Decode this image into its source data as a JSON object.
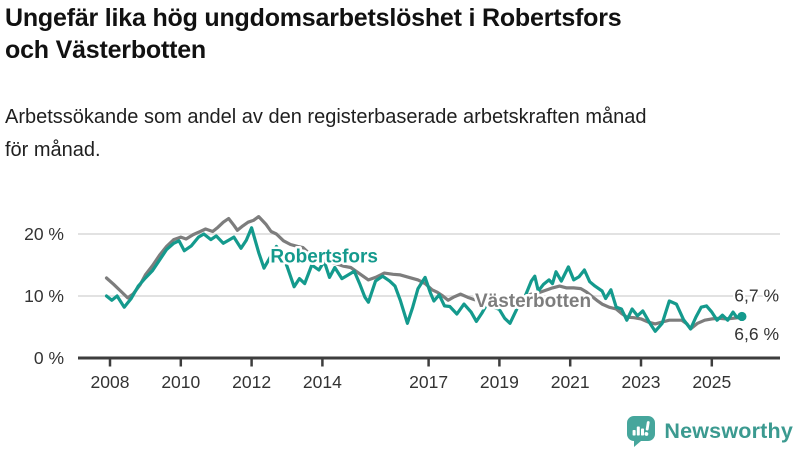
{
  "header": {
    "title_line1": "Ungefär lika hög ungdomsarbetslöshet i Robertsfors",
    "title_line2": "och Västerbotten",
    "subtitle_line1": "Arbetssökande som andel av den registerbaserade arbetskraften månad",
    "subtitle_line2": "för månad."
  },
  "branding": {
    "name": "Newsworthy",
    "icon": "newsworthy-bubble-barchart-icon",
    "color": "#46a69c"
  },
  "colors": {
    "robertsfors": "#149a8d",
    "vasterbotten": "#7d7d7d",
    "axis": "#3d3d3d",
    "grid": "#d9d9d9",
    "text": "#333333"
  },
  "chart_data": {
    "type": "line",
    "title": "Ungefär lika hög ungdomsarbetslöshet i Robertsfors och Västerbotten",
    "subtitle": "Arbetssökande som andel av den registerbaserade arbetskraften månad för månad.",
    "unit": "%",
    "grid": true,
    "legend_position": "inline-labels",
    "x_axis": {
      "range": [
        2007.85,
        2026.9
      ],
      "ticks": [
        2008,
        2010,
        2012,
        2014,
        2017,
        2019,
        2021,
        2023,
        2025
      ]
    },
    "y_axis": {
      "range": [
        0,
        25
      ],
      "ticks": [
        {
          "value": 0,
          "label": "0 %"
        },
        {
          "value": 10,
          "label": "10 %"
        },
        {
          "value": 20,
          "label": "20 %"
        }
      ],
      "gridlines": [
        10,
        20
      ]
    },
    "series": [
      {
        "name": "Västerbotten",
        "color": "#7d7d7d",
        "end_label": "6,6 %",
        "end_value": 6.6,
        "label_pos": {
          "year": 2019.95,
          "value": 9.2
        },
        "points": [
          [
            2007.9,
            12.9
          ],
          [
            2008.1,
            11.9
          ],
          [
            2008.3,
            10.8
          ],
          [
            2008.5,
            9.7
          ],
          [
            2008.65,
            10.3
          ],
          [
            2008.85,
            11.8
          ],
          [
            2009.0,
            13.4
          ],
          [
            2009.2,
            14.9
          ],
          [
            2009.4,
            16.6
          ],
          [
            2009.6,
            18.0
          ],
          [
            2009.8,
            19.1
          ],
          [
            2010.0,
            19.5
          ],
          [
            2010.15,
            19.2
          ],
          [
            2010.35,
            19.9
          ],
          [
            2010.55,
            20.4
          ],
          [
            2010.7,
            20.8
          ],
          [
            2010.9,
            20.4
          ],
          [
            2011.05,
            21.1
          ],
          [
            2011.2,
            21.9
          ],
          [
            2011.35,
            22.5
          ],
          [
            2011.5,
            21.4
          ],
          [
            2011.6,
            20.6
          ],
          [
            2011.75,
            21.3
          ],
          [
            2011.9,
            21.9
          ],
          [
            2012.05,
            22.2
          ],
          [
            2012.2,
            22.8
          ],
          [
            2012.4,
            21.6
          ],
          [
            2012.55,
            20.4
          ],
          [
            2012.7,
            20.0
          ],
          [
            2012.9,
            18.9
          ],
          [
            2013.1,
            18.3
          ],
          [
            2013.3,
            18.0
          ],
          [
            2013.45,
            17.8
          ],
          [
            2013.6,
            17.0
          ],
          [
            2013.8,
            16.2
          ],
          [
            2014.0,
            15.8
          ],
          [
            2014.2,
            15.5
          ],
          [
            2014.4,
            15.2
          ],
          [
            2014.6,
            14.8
          ],
          [
            2014.8,
            14.6
          ],
          [
            2015.0,
            13.8
          ],
          [
            2015.15,
            13.2
          ],
          [
            2015.3,
            12.6
          ],
          [
            2015.5,
            13.0
          ],
          [
            2015.75,
            13.7
          ],
          [
            2016.0,
            13.5
          ],
          [
            2016.2,
            13.4
          ],
          [
            2016.45,
            13.0
          ],
          [
            2016.7,
            12.6
          ],
          [
            2016.9,
            12.0
          ],
          [
            2017.1,
            11.0
          ],
          [
            2017.25,
            10.6
          ],
          [
            2017.4,
            10.0
          ],
          [
            2017.55,
            9.3
          ],
          [
            2017.7,
            9.8
          ],
          [
            2017.9,
            10.3
          ],
          [
            2018.1,
            9.8
          ],
          [
            2018.3,
            9.4
          ],
          [
            2018.5,
            9.2
          ],
          [
            2018.7,
            9.3
          ],
          [
            2018.9,
            9.6
          ],
          [
            2019.1,
            9.3
          ],
          [
            2019.25,
            9.1
          ],
          [
            2019.4,
            9.2
          ],
          [
            2019.65,
            9.6
          ],
          [
            2019.9,
            10.3
          ],
          [
            2020.1,
            10.5
          ],
          [
            2020.3,
            10.9
          ],
          [
            2020.5,
            11.3
          ],
          [
            2020.7,
            11.6
          ],
          [
            2020.9,
            11.3
          ],
          [
            2021.1,
            11.3
          ],
          [
            2021.3,
            11.2
          ],
          [
            2021.45,
            10.7
          ],
          [
            2021.6,
            10.0
          ],
          [
            2021.75,
            9.3
          ],
          [
            2021.9,
            8.7
          ],
          [
            2022.1,
            8.2
          ],
          [
            2022.3,
            7.9
          ],
          [
            2022.45,
            7.2
          ],
          [
            2022.6,
            6.6
          ],
          [
            2022.8,
            6.5
          ],
          [
            2023.0,
            6.3
          ],
          [
            2023.2,
            5.8
          ],
          [
            2023.4,
            5.5
          ],
          [
            2023.6,
            5.8
          ],
          [
            2023.8,
            6.1
          ],
          [
            2024.0,
            6.1
          ],
          [
            2024.15,
            6.1
          ],
          [
            2024.3,
            5.5
          ],
          [
            2024.4,
            4.7
          ],
          [
            2024.6,
            5.6
          ],
          [
            2024.8,
            6.1
          ],
          [
            2025.0,
            6.3
          ],
          [
            2025.2,
            6.4
          ],
          [
            2025.4,
            6.3
          ],
          [
            2025.6,
            6.4
          ],
          [
            2025.75,
            6.5
          ],
          [
            2025.85,
            6.6
          ]
        ]
      },
      {
        "name": "Robertsfors",
        "color": "#149a8d",
        "end_label": "6,7 %",
        "end_value": 6.7,
        "end_dot": true,
        "label_pos": {
          "year": 2014.05,
          "value": 16.4
        },
        "points": [
          [
            2007.9,
            10.0
          ],
          [
            2008.05,
            9.3
          ],
          [
            2008.2,
            10.0
          ],
          [
            2008.4,
            8.2
          ],
          [
            2008.6,
            9.6
          ],
          [
            2008.8,
            11.6
          ],
          [
            2009.0,
            12.9
          ],
          [
            2009.2,
            14.1
          ],
          [
            2009.4,
            15.8
          ],
          [
            2009.6,
            17.5
          ],
          [
            2009.8,
            18.5
          ],
          [
            2009.95,
            18.9
          ],
          [
            2010.1,
            17.3
          ],
          [
            2010.3,
            18.1
          ],
          [
            2010.5,
            19.5
          ],
          [
            2010.65,
            20.0
          ],
          [
            2010.85,
            19.1
          ],
          [
            2011.0,
            19.7
          ],
          [
            2011.2,
            18.5
          ],
          [
            2011.35,
            19.0
          ],
          [
            2011.5,
            19.5
          ],
          [
            2011.7,
            17.7
          ],
          [
            2011.85,
            19.0
          ],
          [
            2012.0,
            21.0
          ],
          [
            2012.2,
            17.0
          ],
          [
            2012.35,
            14.5
          ],
          [
            2012.55,
            16.5
          ],
          [
            2012.7,
            18.0
          ],
          [
            2012.85,
            16.8
          ],
          [
            2013.0,
            14.8
          ],
          [
            2013.2,
            11.5
          ],
          [
            2013.35,
            12.8
          ],
          [
            2013.5,
            12.0
          ],
          [
            2013.7,
            15.0
          ],
          [
            2013.9,
            14.2
          ],
          [
            2014.05,
            15.6
          ],
          [
            2014.2,
            13.0
          ],
          [
            2014.35,
            14.6
          ],
          [
            2014.55,
            12.8
          ],
          [
            2014.7,
            13.3
          ],
          [
            2014.9,
            14.0
          ],
          [
            2015.05,
            12.0
          ],
          [
            2015.2,
            9.8
          ],
          [
            2015.3,
            9.0
          ],
          [
            2015.5,
            12.4
          ],
          [
            2015.7,
            13.2
          ],
          [
            2015.9,
            12.4
          ],
          [
            2016.05,
            11.6
          ],
          [
            2016.2,
            9.3
          ],
          [
            2016.4,
            5.6
          ],
          [
            2016.55,
            8.2
          ],
          [
            2016.7,
            11.2
          ],
          [
            2016.9,
            13.0
          ],
          [
            2017.05,
            10.5
          ],
          [
            2017.15,
            9.2
          ],
          [
            2017.3,
            10.2
          ],
          [
            2017.45,
            8.4
          ],
          [
            2017.6,
            8.3
          ],
          [
            2017.8,
            7.1
          ],
          [
            2018.0,
            8.7
          ],
          [
            2018.2,
            7.4
          ],
          [
            2018.35,
            5.9
          ],
          [
            2018.5,
            7.2
          ],
          [
            2018.65,
            8.7
          ],
          [
            2018.85,
            8.2
          ],
          [
            2019.0,
            7.8
          ],
          [
            2019.15,
            6.4
          ],
          [
            2019.3,
            5.6
          ],
          [
            2019.5,
            8.0
          ],
          [
            2019.7,
            9.6
          ],
          [
            2019.9,
            12.4
          ],
          [
            2020.0,
            13.2
          ],
          [
            2020.1,
            10.8
          ],
          [
            2020.25,
            11.9
          ],
          [
            2020.4,
            12.6
          ],
          [
            2020.5,
            12.0
          ],
          [
            2020.6,
            13.9
          ],
          [
            2020.75,
            12.4
          ],
          [
            2020.95,
            14.7
          ],
          [
            2021.1,
            12.6
          ],
          [
            2021.25,
            13.1
          ],
          [
            2021.4,
            14.2
          ],
          [
            2021.55,
            12.3
          ],
          [
            2021.7,
            11.6
          ],
          [
            2021.9,
            10.8
          ],
          [
            2022.0,
            9.6
          ],
          [
            2022.15,
            11.0
          ],
          [
            2022.3,
            8.2
          ],
          [
            2022.45,
            7.9
          ],
          [
            2022.6,
            6.1
          ],
          [
            2022.75,
            7.9
          ],
          [
            2022.9,
            6.8
          ],
          [
            2023.05,
            7.6
          ],
          [
            2023.25,
            5.6
          ],
          [
            2023.4,
            4.3
          ],
          [
            2023.6,
            5.6
          ],
          [
            2023.8,
            9.2
          ],
          [
            2024.0,
            8.7
          ],
          [
            2024.2,
            6.2
          ],
          [
            2024.4,
            4.7
          ],
          [
            2024.55,
            6.6
          ],
          [
            2024.7,
            8.2
          ],
          [
            2024.85,
            8.4
          ],
          [
            2025.0,
            7.4
          ],
          [
            2025.15,
            6.1
          ],
          [
            2025.3,
            6.9
          ],
          [
            2025.45,
            6.1
          ],
          [
            2025.6,
            7.4
          ],
          [
            2025.7,
            6.6
          ],
          [
            2025.85,
            6.7
          ]
        ]
      }
    ]
  }
}
